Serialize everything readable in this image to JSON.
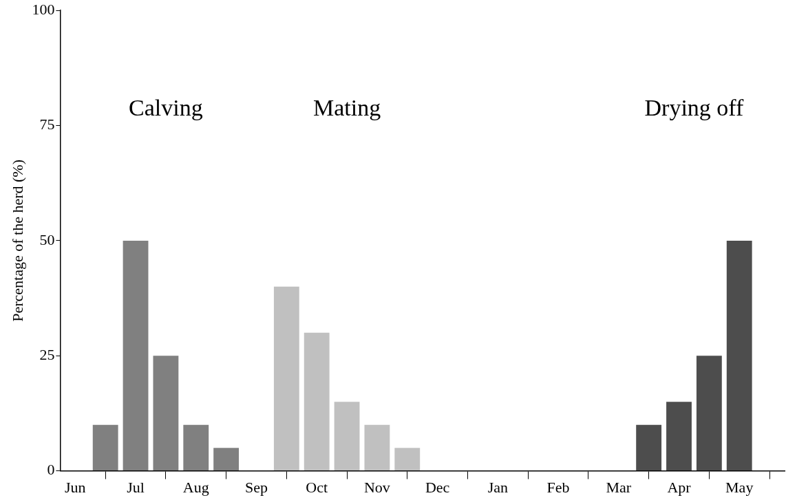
{
  "chart_data": {
    "type": "bar",
    "ylabel": "Percentage of the herd (%)",
    "categories": [
      "Jun",
      null,
      "Jul",
      null,
      "Aug",
      null,
      "Sep",
      null,
      "Oct",
      null,
      "Nov",
      null,
      "Dec",
      null,
      "Jan",
      null,
      "Feb",
      null,
      "Mar",
      null,
      "Apr",
      null,
      "May",
      null
    ],
    "ylim": [
      0,
      100
    ],
    "yticks": [
      0,
      25,
      50,
      75,
      100
    ],
    "grid": false,
    "legend": false,
    "series": [
      {
        "color": "#808080",
        "values": [
          null,
          10,
          50,
          25,
          10,
          5,
          null,
          null,
          null,
          null,
          null,
          null,
          null,
          null,
          null,
          null,
          null,
          null,
          null,
          null,
          null,
          null,
          null,
          null
        ]
      },
      {
        "color": "#c0c0c0",
        "values": [
          null,
          null,
          null,
          null,
          null,
          null,
          null,
          40,
          30,
          15,
          10,
          5,
          null,
          null,
          null,
          null,
          null,
          null,
          null,
          null,
          null,
          null,
          null,
          null
        ]
      },
      {
        "color": "#4d4d4d",
        "values": [
          null,
          null,
          null,
          null,
          null,
          null,
          null,
          null,
          null,
          null,
          null,
          null,
          null,
          null,
          null,
          null,
          null,
          null,
          null,
          10,
          15,
          25,
          50,
          null
        ]
      }
    ],
    "annotations": [
      "Calving",
      "Mating",
      "Drying off"
    ]
  }
}
